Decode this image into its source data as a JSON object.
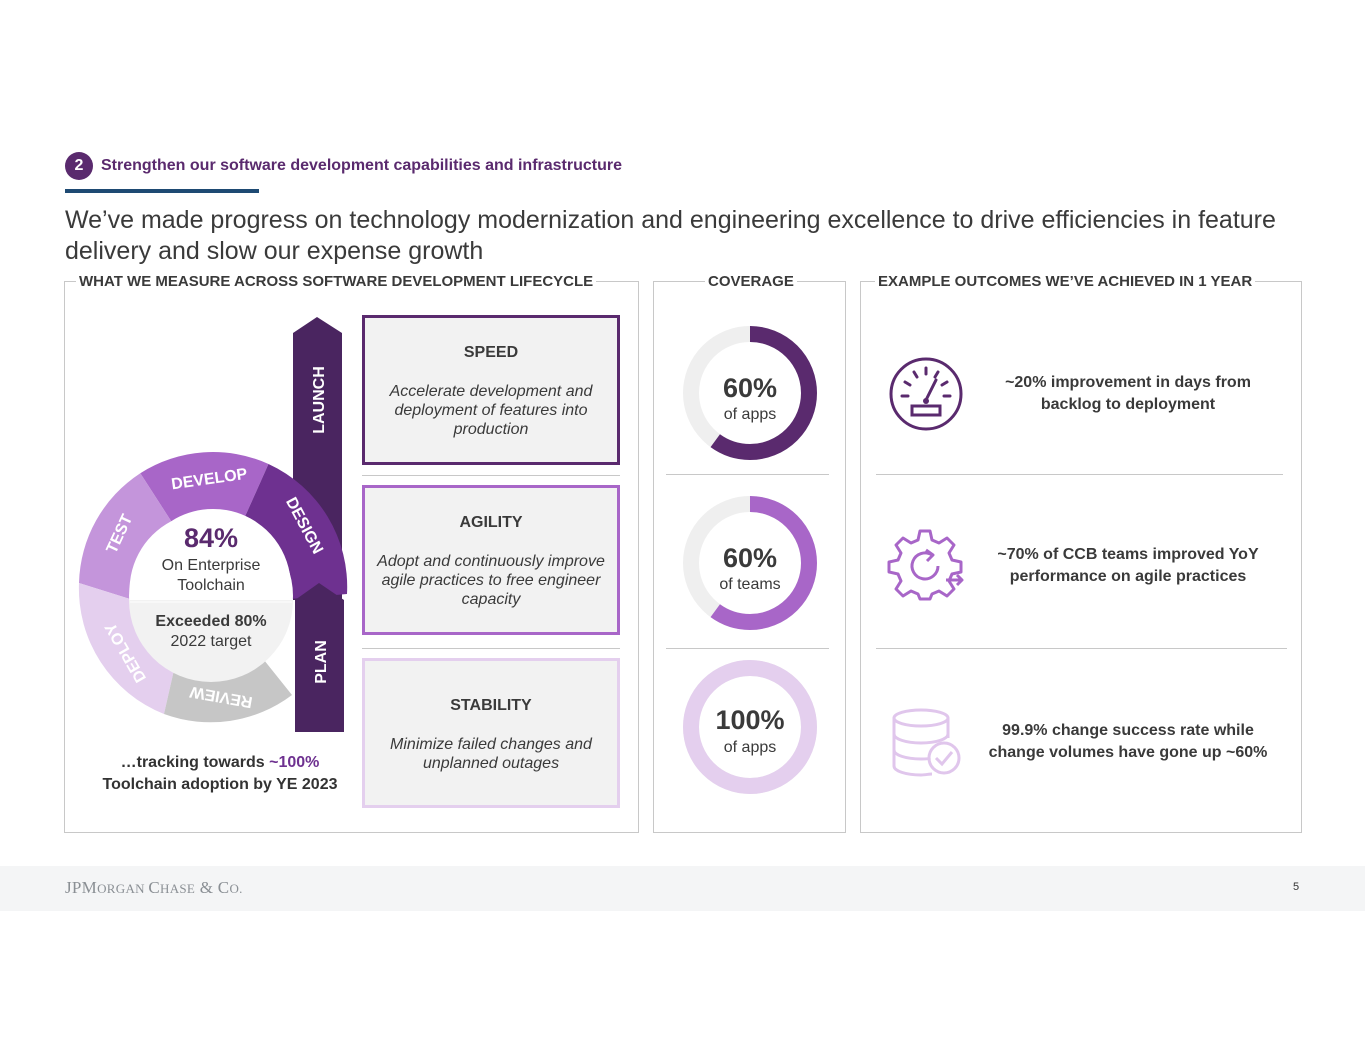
{
  "section": {
    "number": "2",
    "title": "Strengthen our software development capabilities and infrastructure"
  },
  "headline": "We’ve made progress on technology modernization and engineering excellence to drive efficiencies in feature delivery and slow our expense growth",
  "left_panel": {
    "title": "WHAT WE MEASURE ACROSS SOFTWARE DEVELOPMENT LIFECYCLE",
    "arrows": {
      "launch": "LAUNCH",
      "plan": "PLAN"
    },
    "wheel": {
      "segments": [
        "DEVELOP",
        "DESIGN",
        "TEST",
        "DEPLOY",
        "REVIEW"
      ],
      "center_value": "84%",
      "center_label_1": "On Enterprise",
      "center_label_2": "Toolchain",
      "target_1": "Exceeded 80%",
      "target_2": "2022 target"
    },
    "tracking": {
      "prefix": "…tracking towards ",
      "highlight": "~100%",
      "line2": "Toolchain adoption by YE 2023"
    },
    "cards": [
      {
        "title": "SPEED",
        "body": "Accelerate development and deployment of features into production"
      },
      {
        "title": "AGILITY",
        "body": "Adopt and continuously improve agile practices to free engineer capacity"
      },
      {
        "title": "STABILITY",
        "body": "Minimize failed changes and unplanned outages"
      }
    ]
  },
  "coverage": {
    "title": "COVERAGE",
    "items": [
      {
        "value": "60%",
        "label": "of apps",
        "fraction": 0.6,
        "color": "#5a2a6e"
      },
      {
        "value": "60%",
        "label": "of teams",
        "fraction": 0.6,
        "color": "#a866c8"
      },
      {
        "value": "100%",
        "label": "of apps",
        "fraction": 1.0,
        "color": "#e4cfee"
      }
    ]
  },
  "outcomes": {
    "title": "EXAMPLE OUTCOMES WE’VE ACHIEVED IN 1 YEAR",
    "items": [
      {
        "icon": "speedometer-icon",
        "line1": "~20% improvement in days from",
        "line2": "backlog to deployment"
      },
      {
        "icon": "gear-refresh-icon",
        "line1": "~70% of CCB teams improved YoY",
        "line2": "performance on agile practices"
      },
      {
        "icon": "database-check-icon",
        "line1": "99.9% change success rate while",
        "line2": "change volumes have gone up ~60%"
      }
    ]
  },
  "footer": {
    "logo_j": "JPM",
    "logo_organ": "ORGAN ",
    "logo_c": "C",
    "logo_hase": "HASE",
    "logo_amp": " & C",
    "logo_o": "O.",
    "page": "5"
  }
}
